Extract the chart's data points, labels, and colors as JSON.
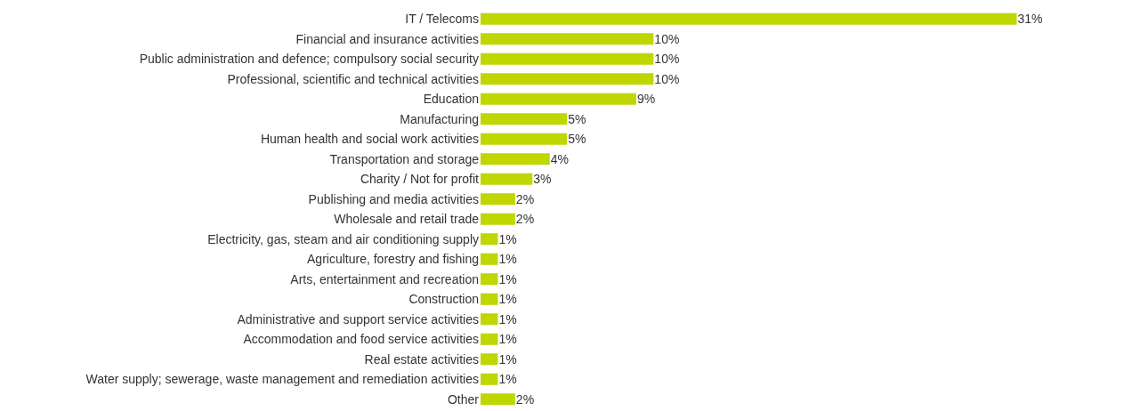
{
  "chart_data": {
    "type": "bar",
    "orientation": "horizontal",
    "categories": [
      "IT / Telecoms",
      "Financial and insurance activities",
      "Public administration and defence; compulsory social security",
      "Professional, scientific and technical activities",
      "Education",
      "Manufacturing",
      "Human health and social work activities",
      "Transportation and storage",
      "Charity / Not for profit",
      "Publishing and media activities",
      "Wholesale and retail trade",
      "Electricity, gas, steam and air conditioning supply",
      "Agriculture, forestry and fishing",
      "Arts, entertainment and recreation",
      "Construction",
      "Administrative and support service activities",
      "Accommodation and food service activities",
      "Real estate activities",
      "Water supply; sewerage, waste management and remediation activities",
      "Other"
    ],
    "values": [
      31,
      10,
      10,
      10,
      9,
      5,
      5,
      4,
      3,
      2,
      2,
      1,
      1,
      1,
      1,
      1,
      1,
      1,
      1,
      2
    ],
    "value_labels": [
      "31%",
      "10%",
      "10%",
      "10%",
      "9%",
      "5%",
      "5%",
      "4%",
      "3%",
      "2%",
      "2%",
      "1%",
      "1%",
      "1%",
      "1%",
      "1%",
      "1%",
      "1%",
      "1%",
      "2%"
    ],
    "color": "#bfd600"
  }
}
